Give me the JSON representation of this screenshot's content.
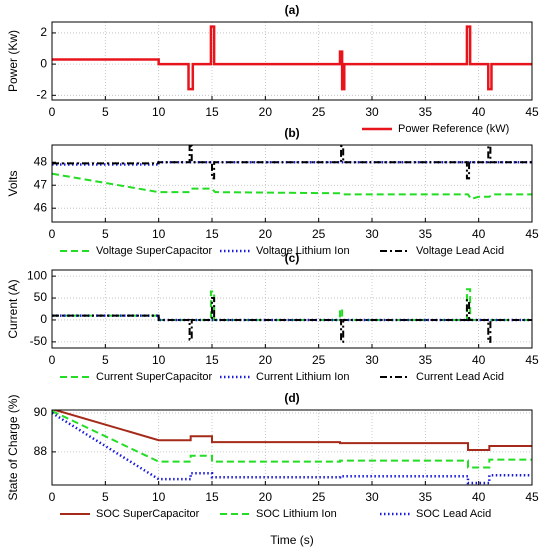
{
  "chart_data": [
    {
      "type": "line",
      "title": "(a)",
      "ylabel": "Power (Kw)",
      "xlim": [
        0,
        45
      ],
      "xticks": [
        0,
        5,
        10,
        15,
        20,
        25,
        30,
        35,
        40,
        45
      ],
      "ylim": [
        -2.3,
        2.7
      ],
      "yticks": [
        -2,
        0,
        2
      ],
      "grid": true,
      "legend": "below right",
      "series": [
        {
          "name": "Power Reference (kW)",
          "color": "#e8141c",
          "linestyle": "solid",
          "linewidth": 2.5,
          "x": [
            0,
            10,
            10,
            12.8,
            12.8,
            13.2,
            13.2,
            14.9,
            14.9,
            15.2,
            15.2,
            27,
            27,
            27.2,
            27.2,
            27.4,
            27.4,
            38.9,
            38.9,
            39.2,
            39.2,
            40.9,
            40.9,
            41.2,
            41.2,
            45
          ],
          "values": [
            0.3,
            0.3,
            0,
            0,
            -1.6,
            -1.6,
            0,
            0,
            2.4,
            2.4,
            0,
            0,
            0.8,
            0.8,
            -1.6,
            -1.6,
            0,
            0,
            2.4,
            2.4,
            0,
            0,
            -1.6,
            -1.6,
            0,
            0
          ]
        }
      ]
    },
    {
      "type": "line",
      "title": "(b)",
      "ylabel": "Volts",
      "xlim": [
        0,
        45
      ],
      "xticks": [
        0,
        5,
        10,
        15,
        20,
        25,
        30,
        35,
        40,
        45
      ],
      "ylim": [
        45.4,
        48.75
      ],
      "yticks": [
        46,
        47,
        48
      ],
      "grid": true,
      "legend": "below center",
      "series": [
        {
          "name": "Voltage SuperCapacitor",
          "color": "#22dd22",
          "linestyle": "dashed",
          "linewidth": 2,
          "x": [
            0,
            10,
            12.8,
            13,
            15,
            15.3,
            27,
            27.2,
            39,
            39.3,
            40,
            41,
            41.3,
            45
          ],
          "values": [
            47.5,
            46.7,
            46.7,
            46.85,
            46.85,
            46.7,
            46.65,
            46.6,
            46.6,
            46.4,
            46.5,
            46.5,
            46.6,
            46.6
          ]
        },
        {
          "name": "Voltage Lithium Ion",
          "color": "#1a1adb",
          "linestyle": "dotted",
          "linewidth": 2.5,
          "x": [
            0,
            10,
            10,
            45
          ],
          "values": [
            47.9,
            47.9,
            48,
            48
          ]
        },
        {
          "name": "Voltage Lead Acid",
          "color": "#000000",
          "linestyle": "dashdot",
          "linewidth": 2,
          "x": [
            0,
            10,
            10,
            12.9,
            12.9,
            13.1,
            13.1,
            15,
            15,
            15.2,
            15.2,
            27.1,
            27.1,
            27.3,
            27.3,
            38.9,
            38.9,
            39.1,
            39.1,
            40.9,
            40.9,
            41.1,
            41.1,
            45
          ],
          "values": [
            47.95,
            47.95,
            48,
            48,
            48.7,
            48.7,
            48,
            48,
            47.3,
            47.3,
            48,
            48,
            48.7,
            48.7,
            48,
            48,
            47.3,
            47.3,
            48,
            48,
            48.7,
            48.7,
            48,
            48
          ]
        }
      ]
    },
    {
      "type": "line",
      "title": "(c)",
      "ylabel": "Current (A)",
      "xlim": [
        0,
        45
      ],
      "xticks": [
        0,
        5,
        10,
        15,
        20,
        25,
        30,
        35,
        40,
        45
      ],
      "ylim": [
        -64,
        114
      ],
      "yticks": [
        -50,
        0,
        50,
        100
      ],
      "grid": true,
      "legend": "below center",
      "series": [
        {
          "name": "Current SuperCapacitor",
          "color": "#22dd22",
          "linestyle": "dashed",
          "linewidth": 2,
          "x": [
            0,
            10,
            10,
            14.9,
            14.9,
            15.2,
            15.2,
            27,
            27,
            27.2,
            27.2,
            38.9,
            38.9,
            39.2,
            39.2,
            45
          ],
          "values": [
            10,
            10,
            0,
            0,
            65,
            65,
            0,
            0,
            25,
            25,
            0,
            0,
            70,
            70,
            0,
            0
          ]
        },
        {
          "name": "Current Lithium Ion",
          "color": "#1a1adb",
          "linestyle": "dotted",
          "linewidth": 2.5,
          "x": [
            0,
            10,
            10,
            45
          ],
          "values": [
            10,
            10,
            0,
            0
          ]
        },
        {
          "name": "Current Lead Acid",
          "color": "#000000",
          "linestyle": "dashdot",
          "linewidth": 2,
          "x": [
            0,
            10,
            10,
            12.9,
            12.9,
            13.1,
            13.1,
            15,
            15,
            15.2,
            15.2,
            27.1,
            27.1,
            27.3,
            27.3,
            38.9,
            38.9,
            39.1,
            39.1,
            40.9,
            40.9,
            41.1,
            41.1,
            45
          ],
          "values": [
            10,
            10,
            0,
            0,
            -45,
            -45,
            0,
            0,
            50,
            50,
            0,
            0,
            -50,
            -50,
            0,
            0,
            45,
            45,
            0,
            0,
            -50,
            -50,
            0,
            0
          ]
        }
      ]
    },
    {
      "type": "line",
      "title": "(d)",
      "ylabel": "State of Charge (%)",
      "xlabel": "Time (s)",
      "xlim": [
        0,
        45
      ],
      "xticks": [
        0,
        5,
        10,
        15,
        20,
        25,
        30,
        35,
        40,
        45
      ],
      "ylim": [
        86.3,
        90.15
      ],
      "yticks": [
        88,
        90
      ],
      "grid": true,
      "legend": "below center",
      "series": [
        {
          "name": "SOC SuperCapacitor",
          "color": "#a52a1a",
          "linestyle": "solid",
          "linewidth": 2,
          "x": [
            0,
            10,
            13,
            13,
            15,
            15,
            27,
            27,
            39,
            39,
            41,
            41,
            45
          ],
          "values": [
            90.2,
            88.6,
            88.6,
            88.8,
            88.8,
            88.5,
            88.5,
            88.45,
            88.45,
            88.1,
            88.1,
            88.3,
            88.3
          ]
        },
        {
          "name": "SOC Lithium Ion",
          "color": "#22dd22",
          "linestyle": "dashed",
          "linewidth": 2,
          "x": [
            0,
            10,
            13,
            13,
            15,
            15,
            27,
            27,
            39,
            39,
            41,
            41,
            45
          ],
          "values": [
            90.1,
            87.5,
            87.5,
            87.8,
            87.8,
            87.5,
            87.5,
            87.55,
            87.55,
            87.2,
            87.2,
            87.6,
            87.6
          ]
        },
        {
          "name": "SOC Lead Acid",
          "color": "#1a1adb",
          "linestyle": "dotted",
          "linewidth": 2.5,
          "x": [
            0,
            10,
            13,
            13,
            15,
            15,
            27,
            27,
            39,
            39,
            41,
            41,
            45
          ],
          "values": [
            90,
            86.6,
            86.6,
            86.9,
            86.9,
            86.7,
            86.7,
            86.75,
            86.75,
            86.4,
            86.4,
            86.8,
            86.8
          ]
        }
      ]
    }
  ]
}
